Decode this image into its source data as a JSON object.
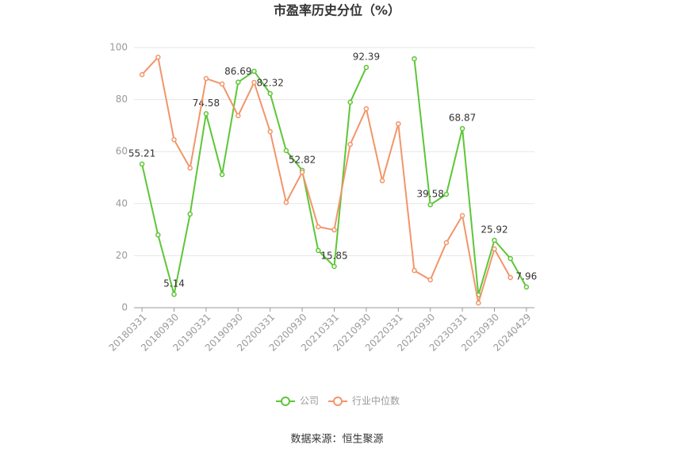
{
  "chart_data": {
    "type": "line",
    "title": "市盈率历史分位（%）",
    "source": "数据来源：恒生聚源",
    "categories": [
      "20180331",
      null,
      "20180930",
      null,
      "20190331",
      null,
      "20190930",
      null,
      "20200331",
      null,
      "20200930",
      null,
      "20210331",
      null,
      "20210930",
      null,
      "20220331",
      null,
      "20220930",
      null,
      "20230331",
      null,
      "20230930",
      null,
      "20240429"
    ],
    "series": [
      {
        "name": "公司",
        "color": "#5dc637",
        "values": [
          55.21,
          28,
          5.14,
          36,
          74.58,
          51.2,
          86.69,
          90.9,
          82.32,
          60.4,
          52.82,
          22,
          15.85,
          79,
          92.39,
          null,
          null,
          95.7,
          39.58,
          43.6,
          68.87,
          4.9,
          25.92,
          18.9,
          7.96
        ],
        "value_labels": [
          "55.21",
          null,
          "5.14",
          null,
          "74.58",
          null,
          "86.69",
          null,
          "82.32",
          null,
          "52.82",
          null,
          "15.85",
          null,
          "92.39",
          null,
          null,
          null,
          "39.58",
          null,
          "68.87",
          null,
          "25.92",
          null,
          "7.96"
        ]
      },
      {
        "name": "行业中位数",
        "color": "#f2956a",
        "values": [
          89.6,
          96.3,
          64.6,
          53.7,
          88.1,
          86,
          73.8,
          86.6,
          67.7,
          40.5,
          52.1,
          31.1,
          29.9,
          62.8,
          76.5,
          48.8,
          70.7,
          14.3,
          10.7,
          25,
          35.4,
          1.8,
          22.6,
          11.6,
          null
        ]
      }
    ],
    "ylim": [
      0,
      100
    ],
    "yticks": [
      0,
      20,
      40,
      60,
      80,
      100
    ],
    "grid": true,
    "legend": "bottom"
  }
}
